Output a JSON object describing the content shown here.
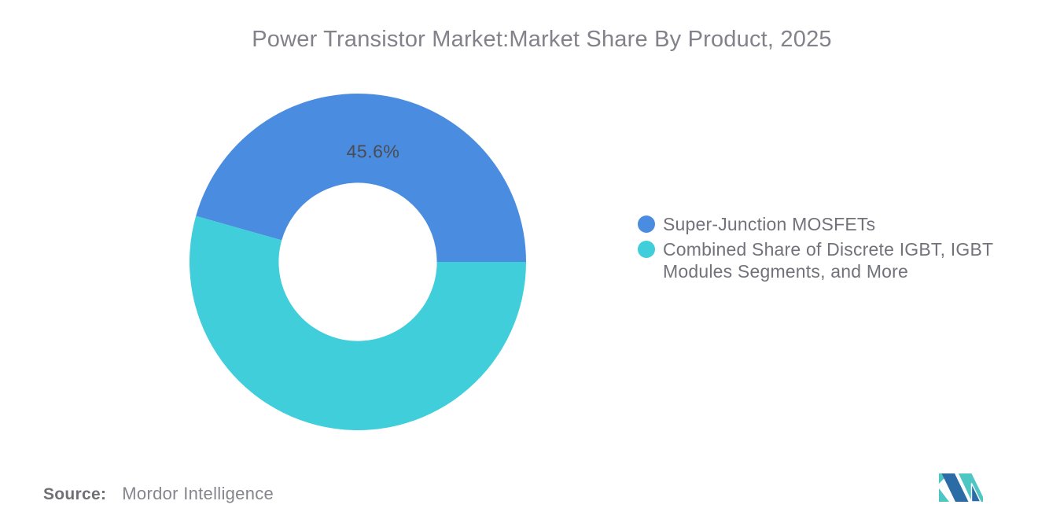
{
  "title": "Power Transistor Market:Market Share By Product, 2025",
  "chart_data": {
    "type": "pie",
    "subtype": "donut",
    "title": "Power Transistor Market:Market Share By Product, 2025",
    "categories": [
      "Super-Junction MOSFETs",
      "Combined Share of Discrete IGBT, IGBT Modules Segments, and More"
    ],
    "values": [
      45.6,
      54.4
    ],
    "colors": [
      "#4A8DE0",
      "#3FCEDA"
    ],
    "data_labels": [
      "45.6%",
      ""
    ],
    "legend_position": "right",
    "inner_radius_ratio": 0.47,
    "start_angle_deg": 164.16,
    "grid": false
  },
  "legend": {
    "items": [
      {
        "label": "Super-Junction MOSFETs",
        "lines": [
          "Super-Junction MOSFETs"
        ],
        "color": "#4A8DE0"
      },
      {
        "label": "Combined Share of Discrete IGBT, IGBT Modules Segments, and More",
        "lines": [
          "Combined Share of Discrete IGBT, IGBT",
          "Modules Segments, and More"
        ],
        "color": "#3FCEDA"
      }
    ]
  },
  "source": {
    "prefix": "Source:",
    "text": "Mordor Intelligence"
  },
  "logo": {
    "name": "mordor-intelligence-logo",
    "blue": "#2C6CA6",
    "teal": "#4EC6C4"
  }
}
